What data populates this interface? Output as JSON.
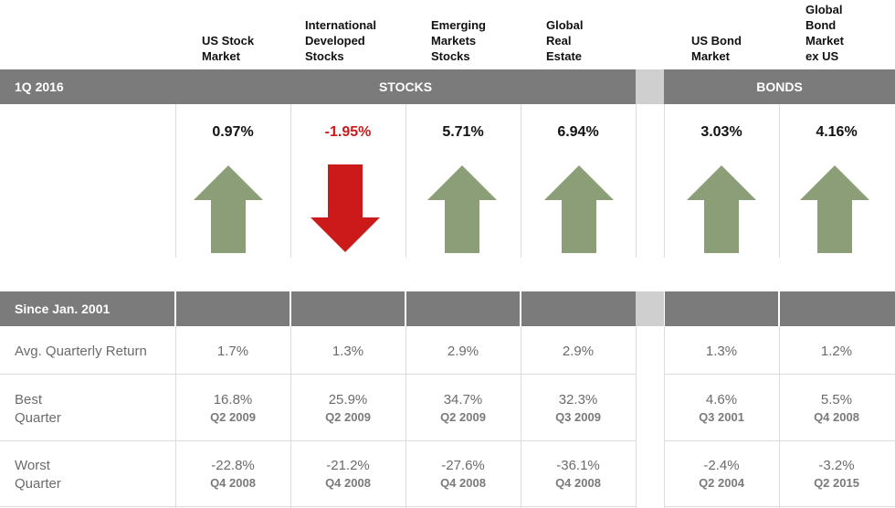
{
  "columns": [
    {
      "header": "US Stock\nMarket",
      "return": "0.97%",
      "direction": "up",
      "avg": "1.7%",
      "best": {
        "value": "16.8%",
        "quarter": "Q2 2009"
      },
      "worst": {
        "value": "-22.8%",
        "quarter": "Q4 2008"
      }
    },
    {
      "header": "International\nDeveloped\nStocks",
      "return": "-1.95%",
      "direction": "down",
      "avg": "1.3%",
      "best": {
        "value": "25.9%",
        "quarter": "Q2 2009"
      },
      "worst": {
        "value": "-21.2%",
        "quarter": "Q4 2008"
      }
    },
    {
      "header": "Emerging\nMarkets\nStocks",
      "return": "5.71%",
      "direction": "up",
      "avg": "2.9%",
      "best": {
        "value": "34.7%",
        "quarter": "Q2 2009"
      },
      "worst": {
        "value": "-27.6%",
        "quarter": "Q4 2008"
      }
    },
    {
      "header": "Global\nReal\nEstate",
      "return": "6.94%",
      "direction": "up",
      "avg": "2.9%",
      "best": {
        "value": "32.3%",
        "quarter": "Q3 2009"
      },
      "worst": {
        "value": "-36.1%",
        "quarter": "Q4 2008"
      }
    },
    {
      "header": "US Bond\nMarket",
      "return": "3.03%",
      "direction": "up",
      "avg": "1.3%",
      "best": {
        "value": "4.6%",
        "quarter": "Q3 2001"
      },
      "worst": {
        "value": "-2.4%",
        "quarter": "Q2 2004"
      }
    },
    {
      "header": "Global\nBond\nMarket\nex US",
      "return": "4.16%",
      "direction": "up",
      "avg": "1.2%",
      "best": {
        "value": "5.5%",
        "quarter": "Q4 2008"
      },
      "worst": {
        "value": "-3.2%",
        "quarter": "Q2 2015"
      }
    }
  ],
  "period_bar": {
    "label": "1Q 2016",
    "stocks_title": "STOCKS",
    "bonds_title": "BONDS"
  },
  "since_bar": {
    "label": "Since Jan. 2001"
  },
  "rows": {
    "avg_label": "Avg. Quarterly Return",
    "best_label": "Best\nQuarter",
    "worst_label": "Worst\nQuarter"
  },
  "colors": {
    "bar": "#7b7b7b",
    "gap": "#cfcfcf",
    "up_arrow": "#8c9e78",
    "down_arrow": "#cc1a1a"
  }
}
